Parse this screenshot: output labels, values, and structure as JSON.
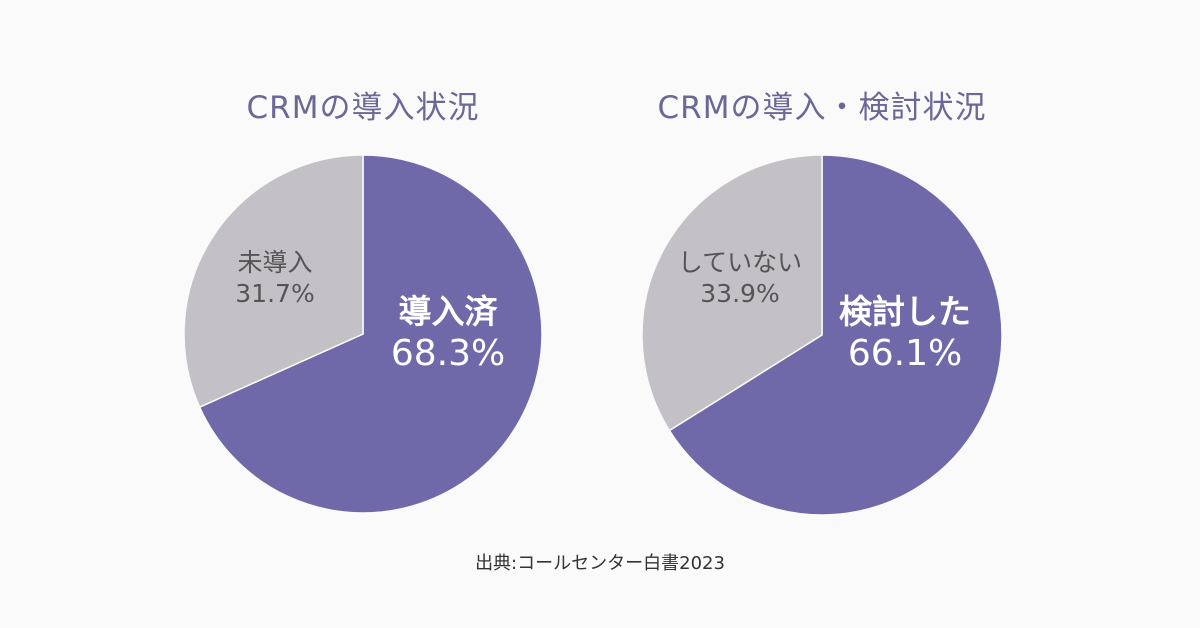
{
  "chart_data": [
    {
      "type": "pie",
      "title": "CRMの導入状況",
      "slices": [
        {
          "label": "導入済",
          "value": 68.3,
          "value_label": "68.3%",
          "color": "#6f68a9"
        },
        {
          "label": "未導入",
          "value": 31.7,
          "value_label": "31.7%",
          "color": "#c3c1c5"
        }
      ]
    },
    {
      "type": "pie",
      "title": "CRMの導入・検討状況",
      "slices": [
        {
          "label": "検討した",
          "value": 66.1,
          "value_label": "66.1%",
          "color": "#6f68a9"
        },
        {
          "label": "していない",
          "value": 33.9,
          "value_label": "33.9%",
          "color": "#c3c1c5"
        }
      ]
    }
  ],
  "source": "出典:コールセンター白書2023"
}
